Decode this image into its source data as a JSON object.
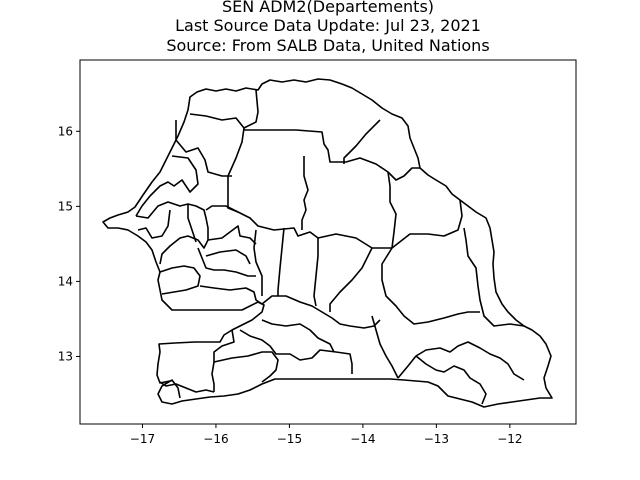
{
  "figure": {
    "title_lines": [
      "SEN ADM2(Departements)",
      "Last Source Data Update: Jul 23, 2021",
      "Source: From SALB Data, United Nations"
    ]
  },
  "map": {
    "x_ticks": [
      {
        "value": -17,
        "label": "−17"
      },
      {
        "value": -16,
        "label": "−16"
      },
      {
        "value": -15,
        "label": "−15"
      },
      {
        "value": -14,
        "label": "−14"
      },
      {
        "value": -13,
        "label": "−13"
      },
      {
        "value": -12,
        "label": "−12"
      }
    ],
    "y_ticks": [
      {
        "value": 13,
        "label": "13"
      },
      {
        "value": 14,
        "label": "14"
      },
      {
        "value": 15,
        "label": "15"
      },
      {
        "value": 16,
        "label": "16"
      }
    ],
    "xlim": [
      -17.85,
      -11.1
    ],
    "ylim": [
      12.1,
      16.95
    ],
    "boundary_color": "#000000"
  }
}
